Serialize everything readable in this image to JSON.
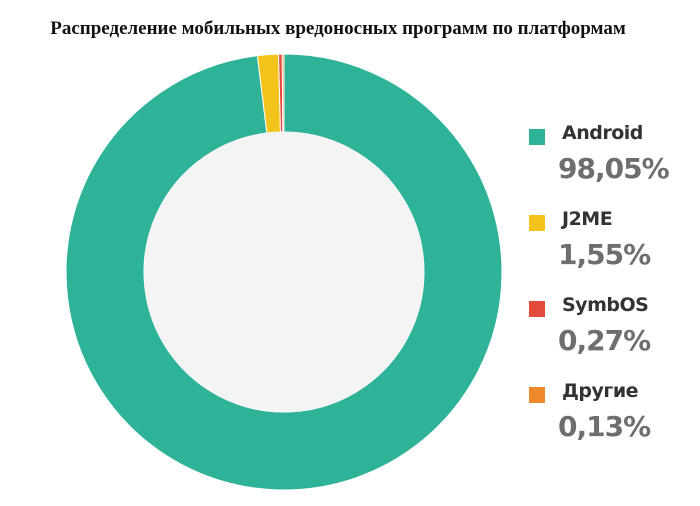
{
  "chart_data": {
    "type": "pie",
    "title": "Распределение мобильных вредоносных программ по платформам",
    "style": "donut",
    "legend_position": "right",
    "series": [
      {
        "name": "Android",
        "value": 98.05,
        "label": "98,05%",
        "color": "#2fb398"
      },
      {
        "name": "J2ME",
        "value": 1.55,
        "label": "1,55%",
        "color": "#f2c31a"
      },
      {
        "name": "SymbOS",
        "value": 0.27,
        "label": "0,27%",
        "color": "#e44a3b"
      },
      {
        "name": "Другие",
        "value": 0.13,
        "label": "0,13%",
        "color": "#ee8a2b"
      }
    ],
    "hole_color": "#f4f4f4"
  }
}
